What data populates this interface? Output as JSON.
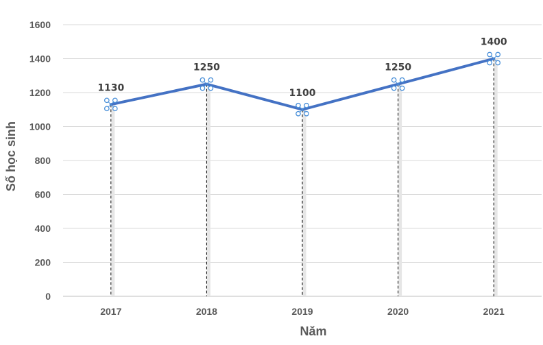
{
  "chart_data": {
    "type": "line",
    "title": "",
    "xlabel": "Năm",
    "ylabel": "Số học sinh",
    "categories": [
      "2017",
      "2018",
      "2019",
      "2020",
      "2021"
    ],
    "series": [
      {
        "values": [
          1130,
          1250,
          1100,
          1250,
          1400
        ],
        "color": "#4472c4"
      }
    ],
    "data_labels": [
      "1130",
      "1250",
      "1100",
      "1250",
      "1400"
    ],
    "ylim": [
      0,
      1600
    ],
    "yticks": [
      0,
      200,
      400,
      600,
      800,
      1000,
      1200,
      1400,
      1600
    ],
    "grid": true,
    "drop_lines": true,
    "legend": "none"
  }
}
